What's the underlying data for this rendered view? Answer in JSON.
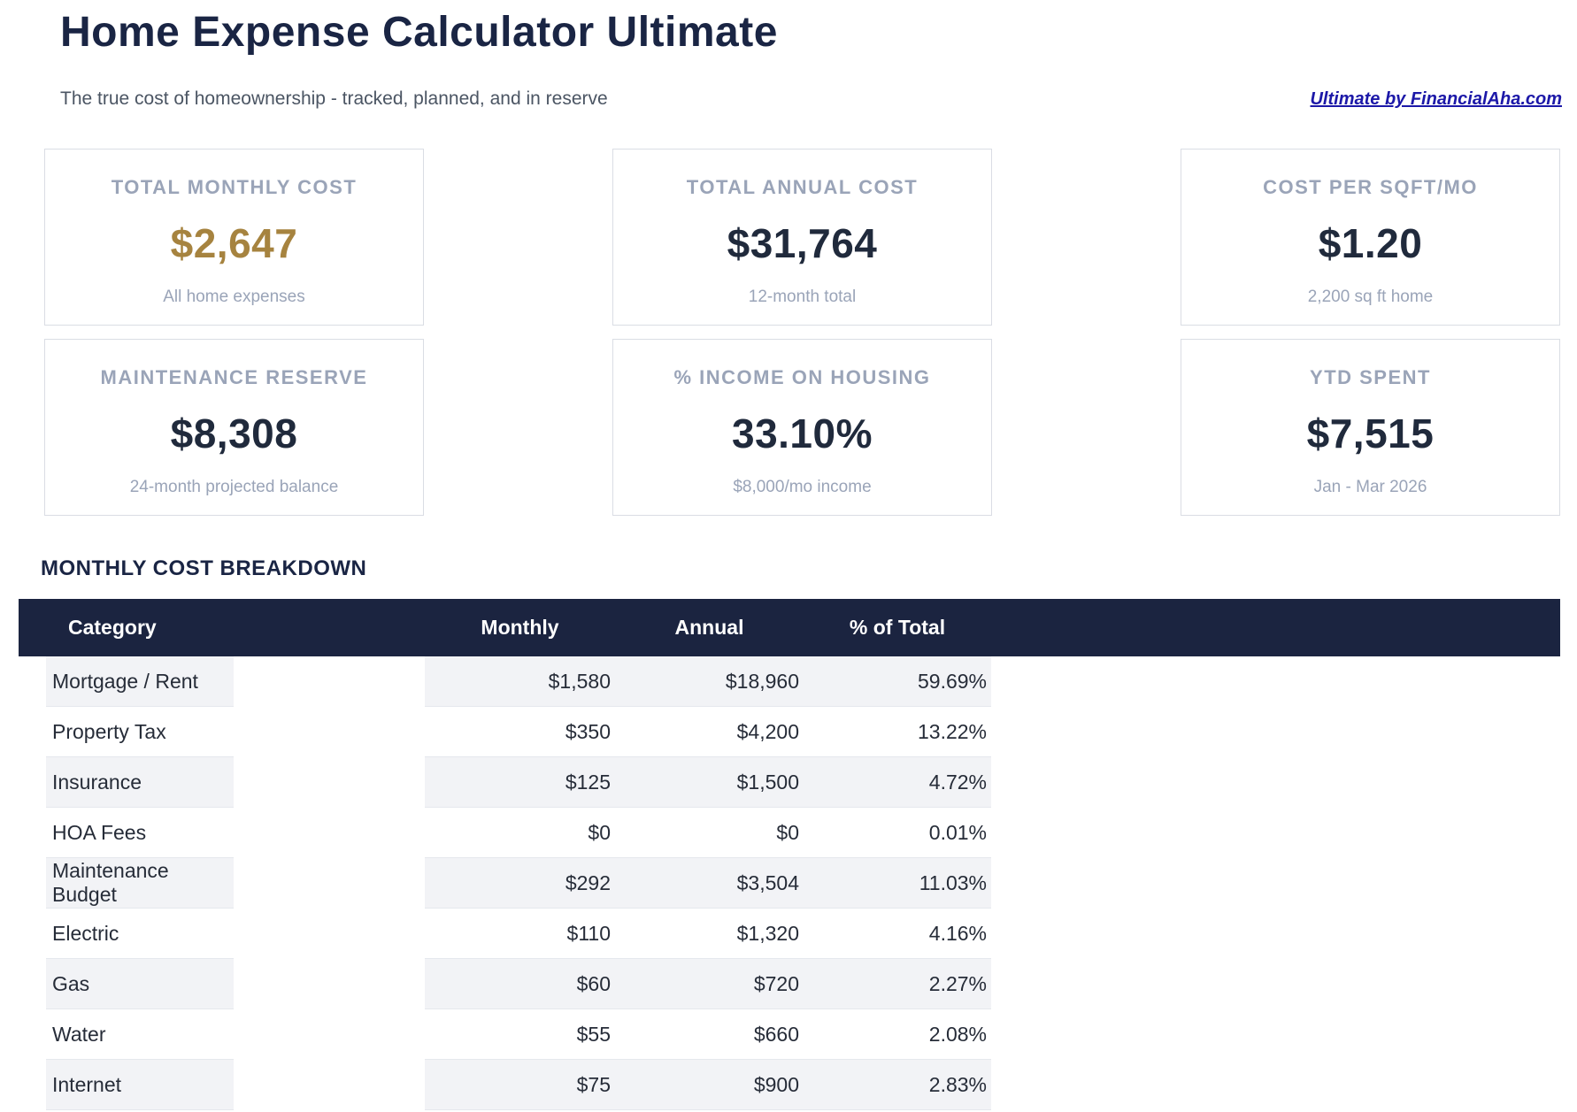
{
  "header": {
    "title": "Home Expense Calculator Ultimate",
    "subtitle": "The true cost of homeownership - tracked, planned, and in reserve",
    "link_label": "Ultimate by FinancialAha.com"
  },
  "stats": [
    {
      "label": "TOTAL MONTHLY COST",
      "value": "$2,647",
      "sub": "All home expenses",
      "highlight": true
    },
    {
      "label": "TOTAL ANNUAL COST",
      "value": "$31,764",
      "sub": "12-month total",
      "highlight": false
    },
    {
      "label": "COST PER SQFT/MO",
      "value": "$1.20",
      "sub": "2,200 sq ft home",
      "highlight": false
    },
    {
      "label": "MAINTENANCE RESERVE",
      "value": "$8,308",
      "sub": "24-month projected balance",
      "highlight": false
    },
    {
      "label": "% INCOME ON HOUSING",
      "value": "33.10%",
      "sub": "$8,000/mo income",
      "highlight": false
    },
    {
      "label": "YTD SPENT",
      "value": "$7,515",
      "sub": "Jan - Mar 2026",
      "highlight": false
    }
  ],
  "breakdown": {
    "section_title": "MONTHLY COST BREAKDOWN",
    "columns": [
      "Category",
      "Monthly",
      "Annual",
      "% of Total"
    ],
    "rows": [
      {
        "category": "Mortgage / Rent",
        "monthly": "$1,580",
        "annual": "$18,960",
        "pct": "59.69%"
      },
      {
        "category": "Property Tax",
        "monthly": "$350",
        "annual": "$4,200",
        "pct": "13.22%"
      },
      {
        "category": "Insurance",
        "monthly": "$125",
        "annual": "$1,500",
        "pct": "4.72%"
      },
      {
        "category": "HOA Fees",
        "monthly": "$0",
        "annual": "$0",
        "pct": "0.01%"
      },
      {
        "category": "Maintenance Budget",
        "monthly": "$292",
        "annual": "$3,504",
        "pct": "11.03%"
      },
      {
        "category": "Electric",
        "monthly": "$110",
        "annual": "$1,320",
        "pct": "4.16%"
      },
      {
        "category": "Gas",
        "monthly": "$60",
        "annual": "$720",
        "pct": "2.27%"
      },
      {
        "category": "Water",
        "monthly": "$55",
        "annual": "$660",
        "pct": "2.08%"
      },
      {
        "category": "Internet",
        "monthly": "$75",
        "annual": "$900",
        "pct": "2.83%"
      }
    ]
  },
  "colors": {
    "navy": "#1b2440",
    "title_navy": "#1a2544",
    "gold": "#a6833f",
    "label_gray": "#9aa4b8",
    "subtitle_gray": "#4b5563",
    "link_blue": "#1c18a8",
    "zebra_gray": "#f2f3f6",
    "row_border": "#e5e8ed",
    "card_border": "#dadde4"
  }
}
